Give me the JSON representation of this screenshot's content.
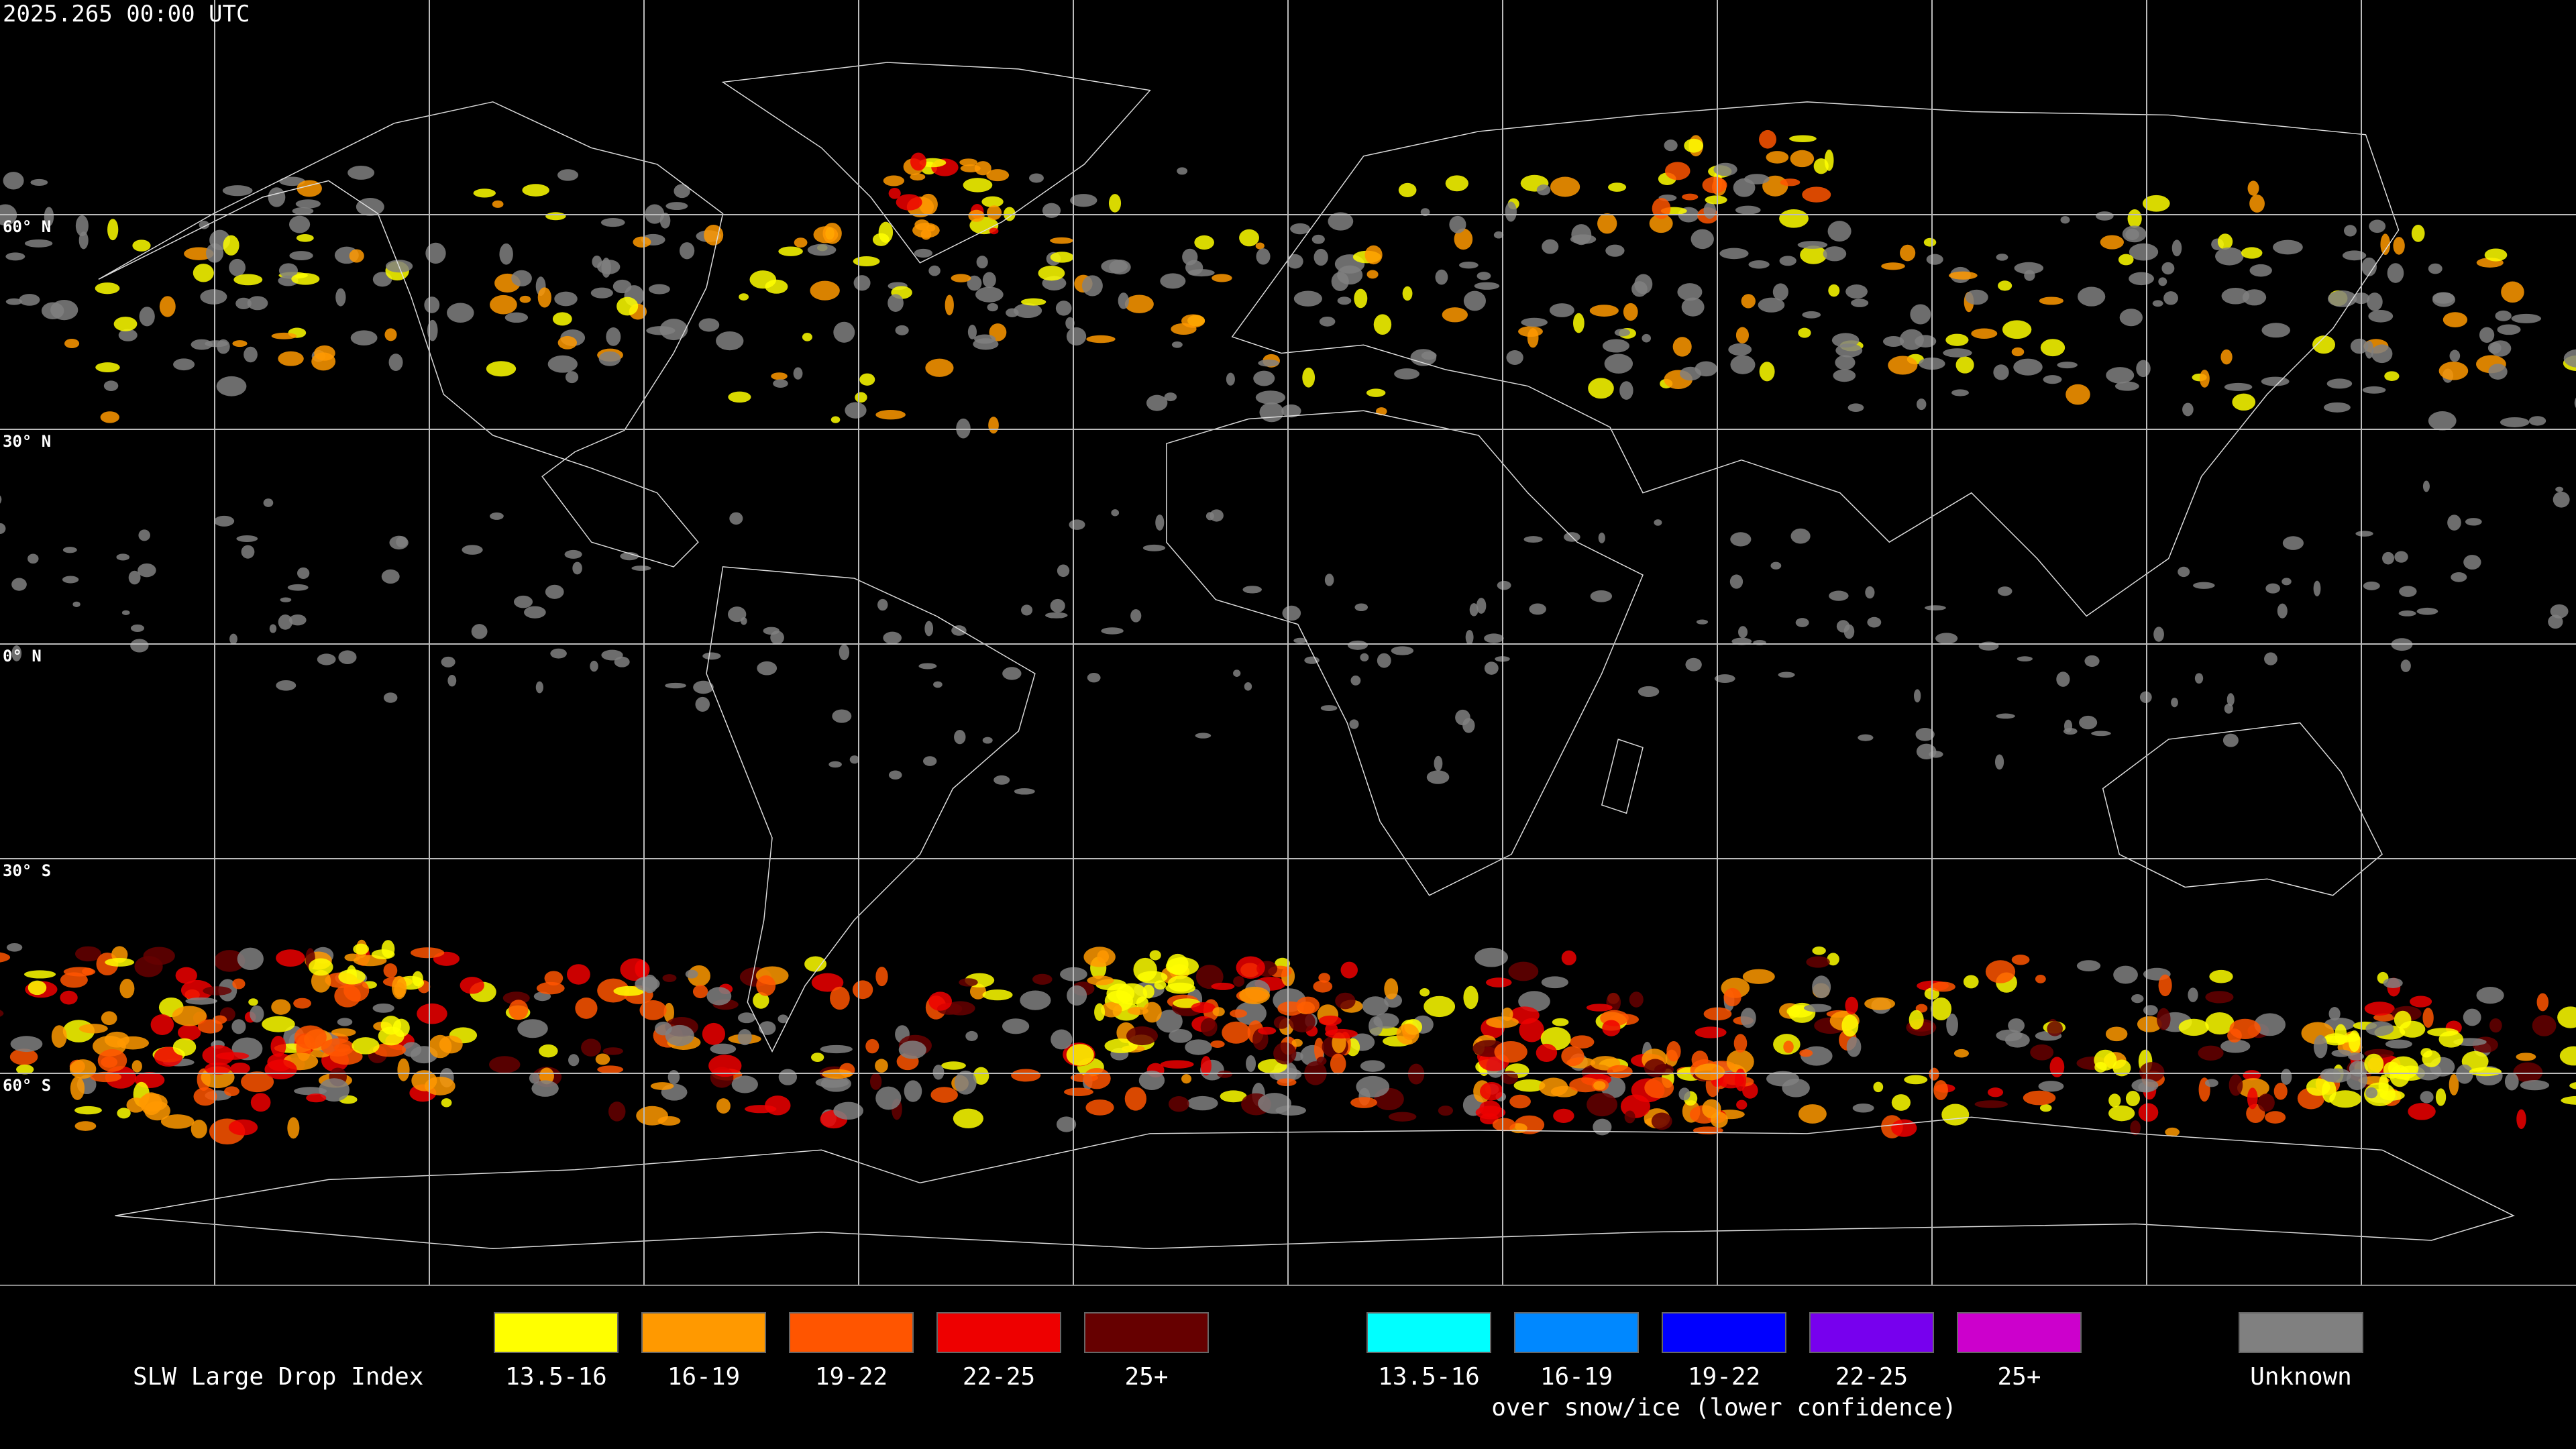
{
  "header": {
    "timestamp": "2025.265 00:00 UTC"
  },
  "grid": {
    "lat_labels": [
      "60° N",
      "30° N",
      "0° N",
      "30° S",
      "60° S"
    ]
  },
  "legend": {
    "title": "SLW Large Drop Index",
    "groups": [
      {
        "items": [
          {
            "label": "13.5-16",
            "color": "#ffff00"
          },
          {
            "label": "16-19",
            "color": "#ff9900"
          },
          {
            "label": "19-22",
            "color": "#ff5500"
          },
          {
            "label": "22-25",
            "color": "#ee0000"
          },
          {
            "label": "25+",
            "color": "#660000"
          }
        ]
      },
      {
        "items": [
          {
            "label": "13.5-16",
            "color": "#00ffff"
          },
          {
            "label": "16-19",
            "color": "#0088ff"
          },
          {
            "label": "19-22",
            "color": "#0000ff"
          },
          {
            "label": "22-25",
            "color": "#7700ee"
          },
          {
            "label": "25+",
            "color": "#cc00cc"
          }
        ],
        "caption": "over snow/ice (lower confidence)"
      },
      {
        "items": [
          {
            "label": "Unknown",
            "color": "#808080"
          }
        ]
      }
    ]
  }
}
